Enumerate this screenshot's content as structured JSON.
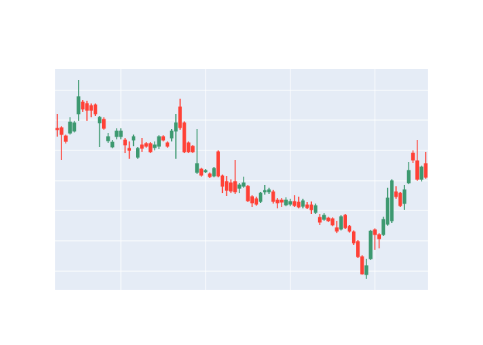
{
  "chart_data": {
    "type": "candlestick",
    "x": [
      0,
      1,
      2,
      3,
      4,
      5,
      6,
      7,
      8,
      9,
      10,
      11,
      12,
      13,
      14,
      15,
      16,
      17,
      18,
      19,
      20,
      21,
      22,
      23,
      24,
      25,
      26,
      27,
      28,
      29,
      30,
      31,
      32,
      33,
      34,
      35,
      36,
      37,
      38,
      39,
      40,
      41,
      42,
      43,
      44,
      45,
      46,
      47,
      48,
      49,
      50,
      51,
      52,
      53,
      54,
      55,
      56,
      57,
      58,
      59,
      60,
      61,
      62,
      63,
      64,
      65,
      66,
      67,
      68,
      69,
      70,
      71,
      72,
      73,
      74,
      75,
      76,
      77,
      78,
      79,
      80,
      81,
      82,
      83,
      84,
      85,
      86,
      87
    ],
    "open": [
      314,
      315,
      303,
      307,
      310,
      335,
      352,
      350,
      347,
      348,
      322,
      327,
      296,
      287,
      302,
      302,
      297,
      285,
      297,
      272,
      290,
      292,
      292,
      286,
      288,
      302,
      293,
      300,
      310,
      345,
      322,
      293,
      288,
      250,
      255,
      251,
      248,
      245,
      280,
      245,
      237,
      235,
      237,
      227,
      230,
      230,
      215,
      212,
      208,
      222,
      222,
      222,
      210,
      210,
      203,
      204,
      208,
      207,
      201,
      203,
      203,
      192,
      185,
      182,
      184,
      183,
      170,
      168,
      188,
      172,
      164,
      150,
      128,
      102,
      125,
      167,
      160,
      160,
      175,
      180,
      222,
      220,
      205,
      235,
      278,
      267,
      240,
      263
    ],
    "high": [
      335,
      317,
      305,
      330,
      325,
      384,
      355,
      354,
      350,
      350,
      332,
      330,
      307,
      297,
      314,
      314,
      300,
      295,
      305,
      287,
      300,
      294,
      294,
      295,
      304,
      304,
      295,
      313,
      335,
      357,
      324,
      295,
      290,
      313,
      257,
      255,
      250,
      258,
      282,
      247,
      245,
      240,
      268,
      235,
      244,
      232,
      217,
      215,
      222,
      232,
      228,
      225,
      213,
      213,
      214,
      212,
      217,
      215,
      212,
      207,
      208,
      205,
      190,
      191,
      186,
      185,
      180,
      188,
      190,
      174,
      166,
      152,
      130,
      125,
      167,
      169,
      162,
      186,
      228,
      240,
      230,
      222,
      232,
      265,
      282,
      297,
      260,
      280
    ],
    "low": [
      302,
      268,
      292,
      305,
      308,
      325,
      338,
      325,
      330,
      332,
      287,
      312,
      293,
      285,
      298,
      298,
      278,
      270,
      288,
      270,
      280,
      286,
      278,
      282,
      284,
      295,
      286,
      295,
      270,
      312,
      278,
      278,
      278,
      248,
      244,
      249,
      242,
      243,
      243,
      220,
      216,
      220,
      219,
      220,
      228,
      207,
      200,
      202,
      206,
      218,
      219,
      205,
      198,
      200,
      201,
      201,
      200,
      198,
      198,
      197,
      190,
      190,
      174,
      180,
      178,
      172,
      162,
      166,
      168,
      163,
      145,
      126,
      102,
      96,
      123,
      138,
      140,
      158,
      173,
      177,
      212,
      200,
      196,
      233,
      264,
      238,
      237,
      241
    ],
    "close": [
      312,
      305,
      295,
      323,
      322,
      360,
      342,
      340,
      340,
      335,
      330,
      314,
      302,
      294,
      310,
      310,
      290,
      282,
      302,
      285,
      285,
      288,
      280,
      290,
      302,
      297,
      288,
      310,
      322,
      315,
      280,
      280,
      280,
      263,
      246,
      253,
      244,
      256,
      245,
      230,
      224,
      223,
      222,
      232,
      235,
      209,
      206,
      204,
      220,
      224,
      225,
      208,
      206,
      207,
      210,
      208,
      202,
      200,
      209,
      199,
      196,
      202,
      178,
      188,
      180,
      174,
      165,
      186,
      170,
      165,
      148,
      128,
      103,
      115,
      165,
      160,
      154,
      182,
      213,
      238,
      215,
      202,
      225,
      253,
      268,
      240,
      258,
      243
    ],
    "increasing_color": "#3d9970",
    "decreasing_color": "#ff4136",
    "xlim": [
      -0.5,
      87.5
    ],
    "xticks": [
      15,
      35,
      55,
      75
    ],
    "ylim": [
      80,
      400
    ],
    "yticks": [
      107,
      151,
      195,
      238,
      282,
      326,
      369
    ],
    "grid": true
  }
}
